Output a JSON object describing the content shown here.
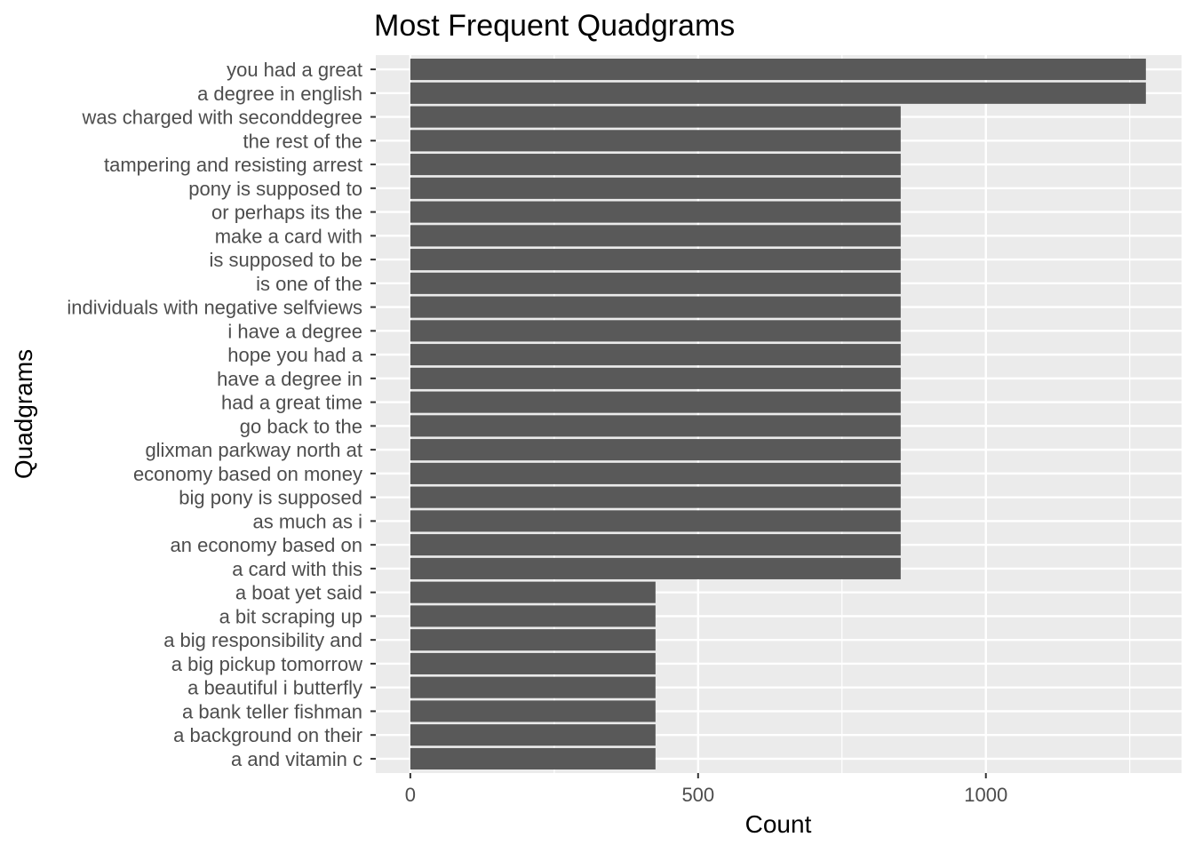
{
  "chart_data": {
    "type": "bar",
    "orientation": "horizontal",
    "title": "Most Frequent Quadgrams",
    "xlabel": "Count",
    "ylabel": "Quadgrams",
    "xlim": [
      -60,
      1340
    ],
    "xticks": [
      0,
      500,
      1000
    ],
    "grid": true,
    "bar_color": "#595959",
    "panel_color": "#ebebeb",
    "categories": [
      "you had a great",
      "a degree in english",
      "was charged with seconddegree",
      "the rest of the",
      "tampering and resisting arrest",
      "pony is supposed to",
      "or perhaps its the",
      "make a card with",
      "is supposed to be",
      "is one of the",
      "individuals with negative selfviews",
      "i have a degree",
      "hope you had a",
      "have a degree in",
      "had a great time",
      "go back to the",
      "glixman parkway north at",
      "economy based on money",
      "big pony is supposed",
      "as much as i",
      "an economy based on",
      "a card with this",
      "a boat yet said",
      "a bit scraping up",
      "a big responsibility and",
      "a big pickup tomorrow",
      "a beautiful i butterfly",
      "a bank teller fishman",
      "a background on their",
      "a and vitamin c"
    ],
    "values": [
      1278,
      1278,
      852,
      852,
      852,
      852,
      852,
      852,
      852,
      852,
      852,
      852,
      852,
      852,
      852,
      852,
      852,
      852,
      852,
      852,
      852,
      852,
      426,
      426,
      426,
      426,
      426,
      426,
      426,
      426
    ]
  }
}
